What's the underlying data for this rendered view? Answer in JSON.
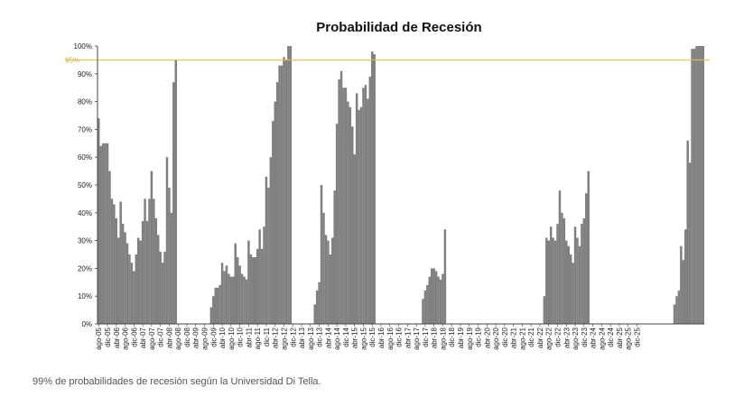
{
  "caption": "99% de probabilidades de recesión según la Universidad Di Tella.",
  "colors": {
    "bar": "#808080",
    "reference": "#e8c040",
    "axis": "#444444"
  },
  "chart_data": {
    "type": "bar",
    "title": "Probabilidad de Recesión",
    "xlabel": "",
    "ylabel": "",
    "ylim": [
      0,
      100
    ],
    "ytick_labels": [
      "0%",
      "10%",
      "20%",
      "30%",
      "40%",
      "50%",
      "60%",
      "70%",
      "80%",
      "90%",
      "100%"
    ],
    "reference_line": {
      "value": 95,
      "label": "95%"
    },
    "tick_labels": [
      "ago-05",
      "dic-05",
      "abr-06",
      "ago-06",
      "dic-06",
      "abr-07",
      "ago-07",
      "dic-07",
      "abr-08",
      "ago-08",
      "dic-08",
      "abr-09",
      "ago-09",
      "dic-09",
      "abr-10",
      "ago-10",
      "dic-10",
      "abr-11",
      "ago-11",
      "dic-11",
      "abr-12",
      "ago-12",
      "dic-12",
      "abr-13",
      "ago-13",
      "dic-13",
      "abr-14",
      "ago-14",
      "dic-14",
      "abr-15",
      "ago-15",
      "dic-15",
      "abr-16",
      "ago-16",
      "dic-16",
      "abr-17",
      "ago-17",
      "dic-17",
      "abr-18",
      "ago-18",
      "dic-18",
      "abr-19",
      "ago-19",
      "dic-19",
      "abr-20",
      "ago-20",
      "dic-20",
      "abr-21",
      "ago-21",
      "dic-21",
      "abr-22",
      "ago-22",
      "dic-22",
      "abr-23",
      "ago-23",
      "dic-23",
      "abr-24",
      "ago-24",
      "dic-24",
      "abr-25",
      "ago-25",
      "dic-25"
    ],
    "start_month": "ago-05",
    "end_month": "dic-25",
    "values": [
      74,
      64,
      65,
      65,
      65,
      55,
      45,
      43,
      38,
      31,
      44,
      36,
      33,
      29,
      25,
      22,
      19,
      25,
      31,
      30,
      37,
      45,
      37,
      45,
      55,
      45,
      38,
      32,
      26,
      22,
      26,
      60,
      49,
      40,
      87,
      95,
      0,
      0,
      0,
      0,
      0,
      0,
      0,
      0,
      0,
      0,
      0,
      0,
      0,
      0,
      0,
      6,
      10,
      13,
      13,
      14,
      22,
      19,
      21,
      18,
      17,
      17,
      29,
      24,
      21,
      18,
      17,
      16,
      30,
      25,
      24,
      24,
      27,
      34,
      27,
      35,
      53,
      49,
      60,
      73,
      80,
      87,
      93,
      93,
      96,
      95,
      100,
      100,
      0,
      0,
      0,
      0,
      0,
      0,
      0,
      0,
      0,
      0,
      7,
      12,
      15,
      50,
      40,
      32,
      30,
      25,
      31,
      48,
      72,
      88,
      91,
      85,
      85,
      80,
      78,
      71,
      61,
      83,
      77,
      78,
      85,
      86,
      81,
      89,
      98,
      97,
      0,
      0,
      0,
      0,
      0,
      0,
      0,
      0,
      0,
      0,
      0,
      0,
      0,
      0,
      0,
      0,
      0,
      0,
      0,
      0,
      0,
      9,
      12,
      14,
      17,
      20,
      20,
      19,
      17,
      16,
      18,
      34,
      0,
      0,
      0,
      0,
      0,
      0,
      0,
      0,
      0,
      0,
      0,
      0,
      0,
      0,
      0,
      0,
      0,
      0,
      0,
      0,
      0,
      0,
      0,
      0,
      0,
      0,
      0,
      0,
      0,
      0,
      0,
      0,
      0,
      0,
      0,
      0,
      0,
      0,
      0,
      0,
      0,
      0,
      0,
      0,
      10,
      31,
      30,
      35,
      31,
      30,
      36,
      48,
      40,
      38,
      30,
      28,
      25,
      22,
      35,
      31,
      28,
      36,
      38,
      47,
      55,
      0,
      0,
      0,
      0,
      0,
      0,
      0,
      0,
      0,
      0,
      0,
      0,
      0,
      0,
      0,
      0,
      0,
      0,
      0,
      0,
      0,
      0,
      0,
      0,
      0,
      0,
      0,
      0,
      0,
      0,
      0,
      0,
      0,
      0,
      0,
      0,
      0,
      0,
      7,
      10,
      12,
      28,
      23,
      34,
      66,
      58,
      99,
      99,
      100,
      100,
      100,
      100
    ]
  }
}
